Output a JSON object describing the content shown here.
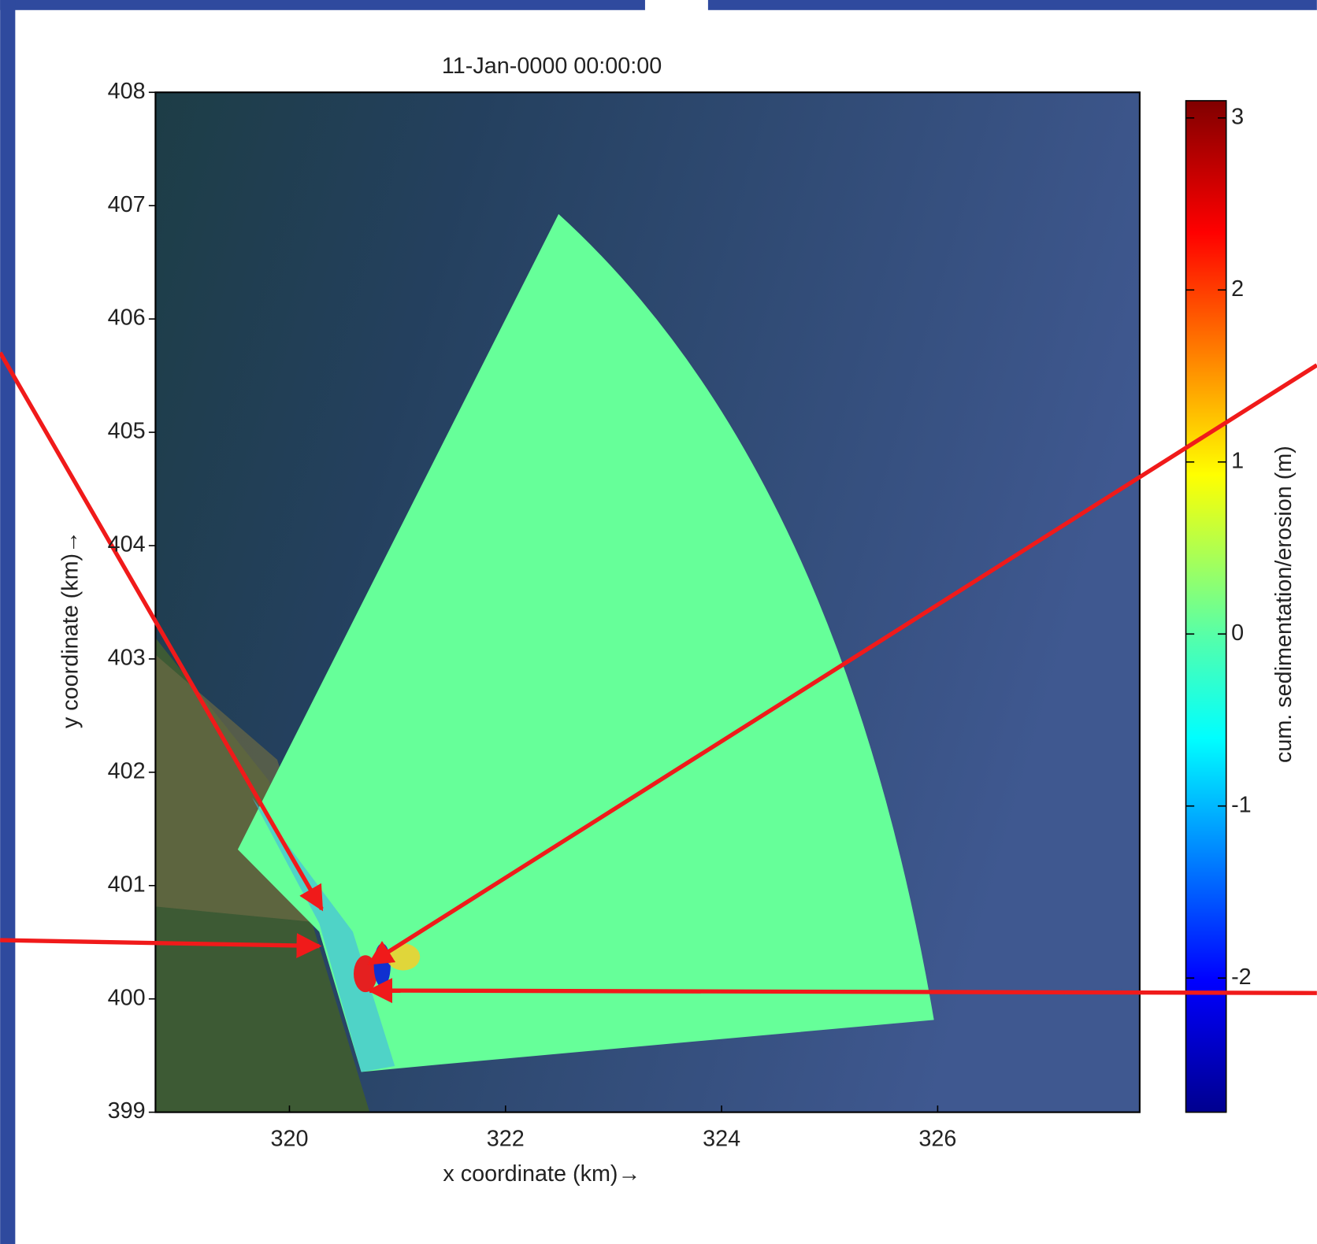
{
  "chart_data": {
    "type": "map",
    "title": "11-Jan-0000 00:00:00",
    "xlabel": "x coordinate (km)→",
    "ylabel": "y coordinate (km)→",
    "xlim": [
      318.76,
      327.87
    ],
    "xticks": [
      320,
      322,
      324,
      326
    ],
    "ylim": [
      399,
      408
    ],
    "yticks": [
      399,
      400,
      401,
      402,
      403,
      404,
      405,
      406,
      407,
      408
    ],
    "colorbar": {
      "label": "cum. sedimentation/erosion (m)",
      "lim": [
        -2.78,
        3.1
      ],
      "ticks": [
        -2,
        -1,
        0,
        1,
        2,
        3
      ],
      "colormap": "jet"
    }
  }
}
